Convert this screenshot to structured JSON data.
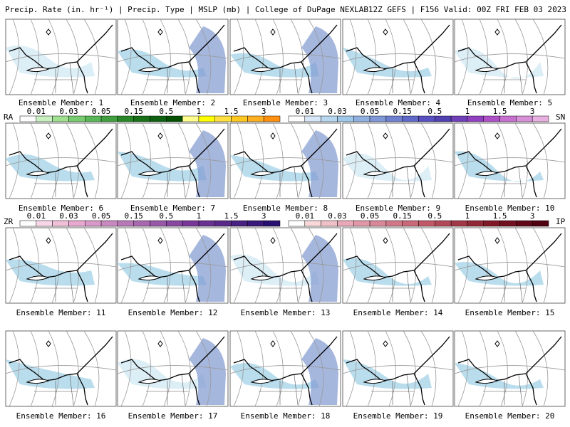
{
  "header": {
    "left": "Precip. Rate (in. hr⁻¹) | Precip. Type | MSLP (mb) | College of DuPage NEXLAB",
    "right": "12Z GEFS | F156 Valid: 00Z FRI FEB 03 2023"
  },
  "members": [
    "Ensemble Member: 1",
    "Ensemble Member: 2",
    "Ensemble Member: 3",
    "Ensemble Member: 4",
    "Ensemble Member: 5",
    "Ensemble Member: 6",
    "Ensemble Member: 7",
    "Ensemble Member: 8",
    "Ensemble Member: 9",
    "Ensemble Member: 10",
    "Ensemble Member: 11",
    "Ensemble Member: 12",
    "Ensemble Member: 13",
    "Ensemble Member: 14",
    "Ensemble Member: 15",
    "Ensemble Member: 16",
    "Ensemble Member: 17",
    "Ensemble Member: 18",
    "Ensemble Member: 19",
    "Ensemble Member: 20"
  ],
  "colorbars": [
    {
      "label": "RA",
      "ticks": [
        "0.01",
        "0.03",
        "0.05",
        "0.15",
        "0.5",
        "1",
        "1.5",
        "3"
      ],
      "colors": [
        "#ffffff",
        "#c8f0c0",
        "#a0e090",
        "#78cc70",
        "#58b858",
        "#40a040",
        "#288828",
        "#187018",
        "#0c6010",
        "#005000",
        "#ffff90",
        "#ffff00",
        "#ffe040",
        "#ffc820",
        "#ffb020",
        "#ff9010"
      ]
    },
    {
      "label": "SN",
      "ticks": [
        "0.01",
        "0.03",
        "0.05",
        "0.15",
        "0.5",
        "1",
        "1.5",
        "3"
      ],
      "colors": [
        "#ffffff",
        "#d8e8f8",
        "#b8d8f0",
        "#a0c8e8",
        "#90b0e0",
        "#8098d8",
        "#7080d0",
        "#6068c8",
        "#5850c0",
        "#5040b0",
        "#7040b8",
        "#9040c0",
        "#b050c8",
        "#c870d0",
        "#d890d8",
        "#e8b0e0"
      ]
    },
    {
      "label": "ZR",
      "ticks": [
        "0.01",
        "0.03",
        "0.05",
        "0.15",
        "0.5",
        "1",
        "1.5",
        "3"
      ],
      "colors": [
        "#ffffff",
        "#f8d8e8",
        "#f0c0d8",
        "#e8a8d0",
        "#d898c8",
        "#c888c0",
        "#b878b8",
        "#a868b0",
        "#9858a8",
        "#8848a0",
        "#783898",
        "#683090",
        "#582888",
        "#482080",
        "#381878",
        "#281070"
      ]
    },
    {
      "label": "IP",
      "ticks": [
        "0.01",
        "0.03",
        "0.05",
        "0.15",
        "0.5",
        "1",
        "1.5",
        "3"
      ],
      "colors": [
        "#ffffff",
        "#f8d8d8",
        "#f0c0c8",
        "#e8a8b8",
        "#e098a8",
        "#d88898",
        "#d07888",
        "#c86878",
        "#c05868",
        "#b04858",
        "#a03848",
        "#902838",
        "#801828",
        "#701020",
        "#600818",
        "#500010"
      ]
    }
  ]
}
